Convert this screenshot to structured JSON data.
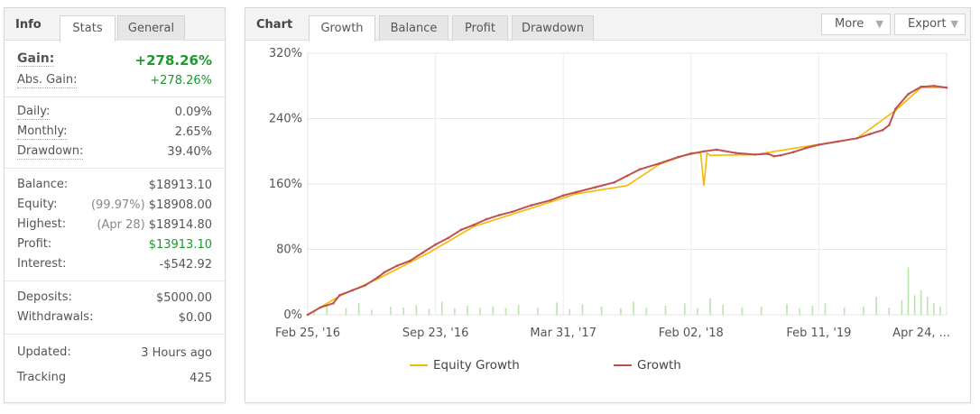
{
  "left_panel": {
    "title": "Info",
    "tabs": [
      {
        "label": "Stats",
        "active": true
      },
      {
        "label": "General",
        "active": false
      }
    ],
    "gain": {
      "label": "Gain:",
      "value": "+278.26%"
    },
    "abs_gain": {
      "label": "Abs. Gain:",
      "value": "+278.26%"
    },
    "daily": {
      "label": "Daily:",
      "value": "0.09%"
    },
    "monthly": {
      "label": "Monthly:",
      "value": "2.65%"
    },
    "drawdown": {
      "label": "Drawdown:",
      "value": "39.40%"
    },
    "balance": {
      "label": "Balance:",
      "value": "$18913.10"
    },
    "equity": {
      "label": "Equity:",
      "prefix": "(99.97%)",
      "value": "$18908.00"
    },
    "highest": {
      "label": "Highest:",
      "prefix": "(Apr 28)",
      "value": "$18914.80"
    },
    "profit": {
      "label": "Profit:",
      "value": "$13913.10"
    },
    "interest": {
      "label": "Interest:",
      "value": "-$542.92"
    },
    "deposits": {
      "label": "Deposits:",
      "value": "$5000.00"
    },
    "withdrawals": {
      "label": "Withdrawals:",
      "value": "$0.00"
    },
    "updated": {
      "label": "Updated:",
      "value": "3 Hours ago"
    },
    "tracking": {
      "label": "Tracking",
      "value": "425"
    }
  },
  "right_panel": {
    "title": "Chart",
    "tabs": [
      {
        "label": "Growth",
        "active": true
      },
      {
        "label": "Balance",
        "active": false
      },
      {
        "label": "Profit",
        "active": false
      },
      {
        "label": "Drawdown",
        "active": false
      }
    ],
    "more_label": "More",
    "export_label": "Export",
    "arrow_glyph": "▼"
  },
  "colors": {
    "growth": "#c0504d",
    "equity": "#f5b800",
    "volume": "#b9e3ad",
    "gain_green": "#1a9a2a"
  },
  "chart_data": {
    "type": "line",
    "x_tick_labels": [
      "Feb 25, '16",
      "Sep 23, '16",
      "Mar 31, '17",
      "Feb 02, '18",
      "Feb 11, '19",
      "Apr 24, ..."
    ],
    "y_tick_labels": [
      "0%",
      "80%",
      "160%",
      "240%",
      "320%"
    ],
    "ylim": [
      0,
      320
    ],
    "xlim": [
      0,
      100
    ],
    "grid": true,
    "legend_position": "bottom",
    "series": [
      {
        "name": "Growth",
        "x": [
          0,
          2,
          4,
          5,
          7,
          9,
          11,
          12,
          14,
          16,
          18,
          20,
          22,
          24,
          26,
          28,
          30,
          32,
          35,
          38,
          40,
          42,
          45,
          48,
          50,
          52,
          55,
          58,
          60,
          62,
          64,
          67,
          70,
          72,
          73,
          74,
          76,
          78,
          80,
          83,
          86,
          88,
          90,
          91,
          92,
          94,
          96,
          98,
          100
        ],
        "values": [
          0,
          9,
          14,
          24,
          30,
          36,
          46,
          52,
          60,
          66,
          76,
          86,
          94,
          104,
          110,
          117,
          122,
          126,
          134,
          140,
          146,
          150,
          156,
          162,
          170,
          178,
          185,
          193,
          197,
          200,
          202,
          198,
          196,
          197,
          194,
          195,
          199,
          204,
          208,
          212,
          216,
          221,
          226,
          232,
          252,
          270,
          279,
          280,
          278
        ]
      },
      {
        "name": "Equity Growth",
        "x": [
          0,
          5,
          11,
          19,
          26,
          34,
          42,
          50,
          55,
          60,
          61.5,
          62,
          62.5,
          63,
          70,
          78,
          86,
          92,
          96,
          100
        ],
        "values": [
          0,
          23,
          44,
          76,
          108,
          128,
          148,
          158,
          184,
          198,
          198,
          158,
          198,
          195,
          196,
          206,
          216,
          250,
          278,
          278
        ]
      },
      {
        "name": "Volume",
        "x": [
          1,
          3,
          6,
          8,
          10,
          13,
          15,
          17,
          19,
          21,
          23,
          25,
          27,
          29,
          31,
          33,
          36,
          39,
          41,
          43,
          46,
          49,
          51,
          53,
          56,
          59,
          61,
          63,
          65,
          68,
          71,
          75,
          77,
          79,
          81,
          84,
          87,
          89,
          91,
          93,
          94,
          95,
          96,
          97,
          98,
          99
        ],
        "values": [
          5,
          12,
          8,
          14,
          6,
          10,
          9,
          12,
          7,
          16,
          8,
          11,
          9,
          10,
          8,
          12,
          9,
          15,
          7,
          13,
          10,
          8,
          16,
          9,
          11,
          14,
          8,
          20,
          12,
          9,
          10,
          13,
          8,
          11,
          14,
          9,
          10,
          22,
          9,
          18,
          58,
          24,
          30,
          22,
          14,
          10
        ]
      }
    ]
  }
}
